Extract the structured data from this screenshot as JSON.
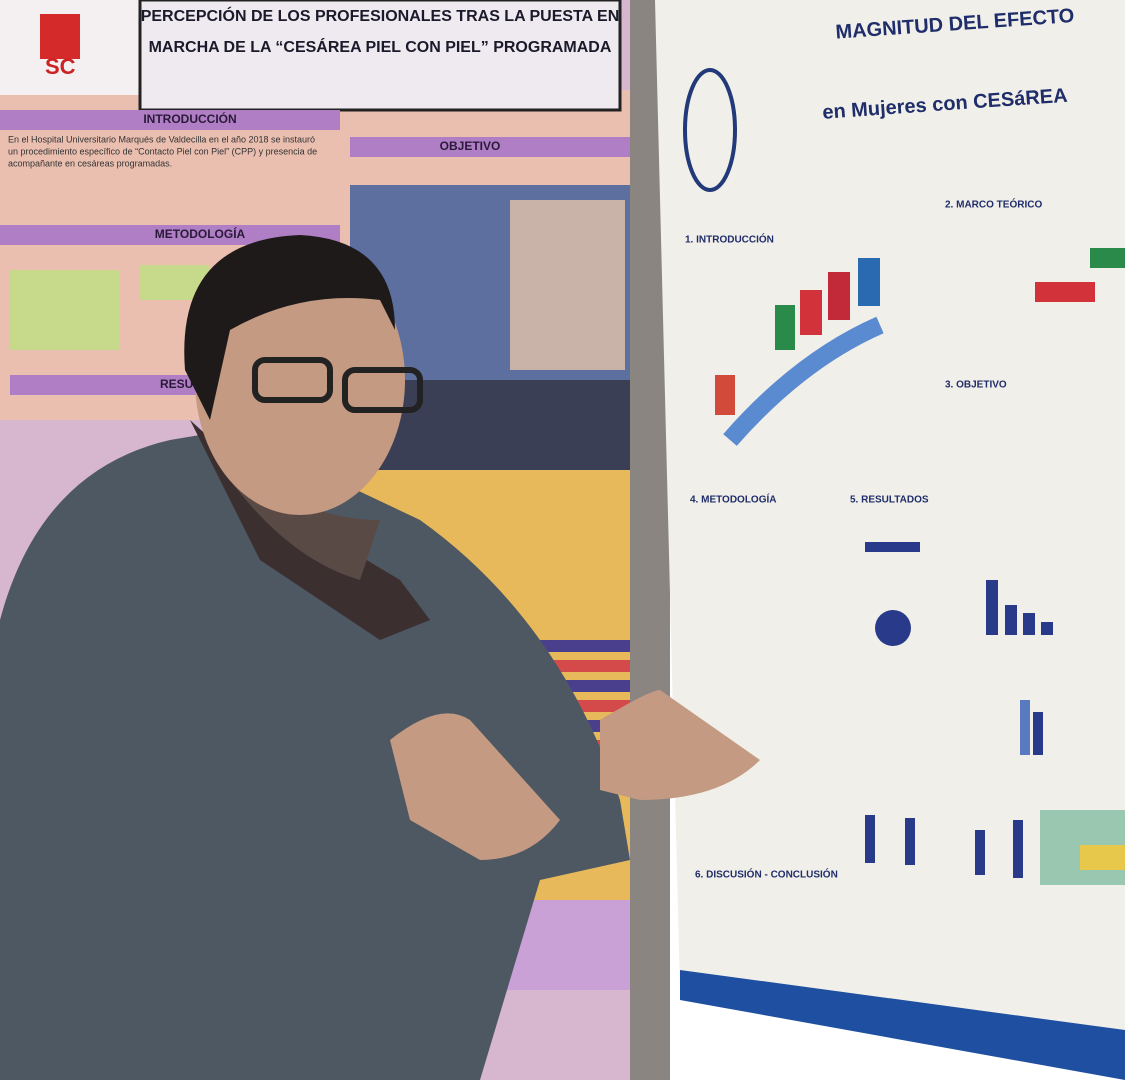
{
  "left_poster": {
    "logo": "SC",
    "title_line1": "PERCEPCIÓN DE LOS PROFESIONALES TRAS LA PUESTA EN",
    "title_line2": "MARCHA DE LA “CESÁREA PIEL CON PIEL” PROGRAMADA",
    "sections": [
      "INTRODUCCIÓN",
      "OBJETIVO",
      "METODOLOGÍA",
      "RESU"
    ],
    "intro_lines": [
      "En el Hospital Universitario Marqués de Valdecilla en el año 2018 se instauró",
      "un procedimiento específico de “Contacto Piel con Piel” (CPP) y presencia de",
      "acompañante en cesáreas programadas."
    ]
  },
  "right_poster": {
    "title_line1": "MAGNITUD DEL EFECTO",
    "title_line2": "en Mujeres con CESáREA",
    "sections": [
      "1. INTRODUCCIÓN",
      "2. MARCO TEÓRICO",
      "3. OBJETIVO",
      "4. METODOLOGÍA",
      "5. RESULTADOS",
      "6. DISCUSIÓN - CONCLUSIÓN"
    ]
  }
}
